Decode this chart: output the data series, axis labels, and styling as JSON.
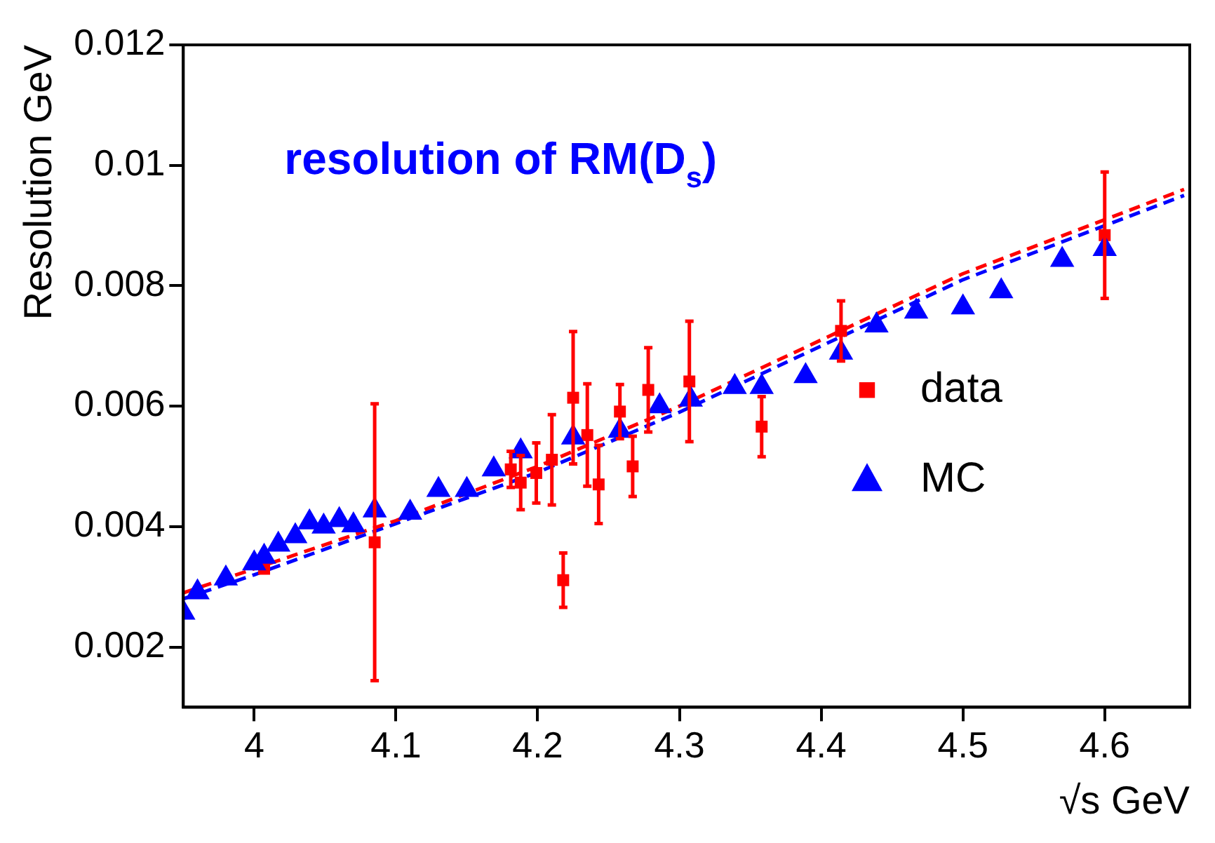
{
  "chart_data": {
    "type": "scatter",
    "title": "resolution of RM(D$_{s}$)",
    "xlabel": "√s GeV",
    "ylabel": "Resolution GeV",
    "xlim": [
      3.95,
      4.66
    ],
    "xticks": [
      4,
      4.1,
      4.2,
      4.3,
      4.4,
      4.5,
      4.6
    ],
    "ylim": [
      0.001,
      0.012
    ],
    "yticks": [
      0.002,
      0.004,
      0.006,
      0.008,
      0.01,
      0.012
    ],
    "grid": false,
    "legend": "right",
    "series": [
      {
        "type": "line",
        "color": "#ff0000",
        "marker": "none",
        "line_style": "dashed",
        "x": [
          3.95,
          4.0,
          4.1,
          4.2,
          4.3,
          4.4,
          4.5,
          4.656
        ],
        "values": [
          0.0029,
          0.0033,
          0.0041,
          0.005,
          0.006,
          0.0071,
          0.0082,
          0.0096
        ]
      },
      {
        "type": "line",
        "color": "#0000ff",
        "marker": "none",
        "line_style": "dashed",
        "x": [
          3.95,
          4.0,
          4.1,
          4.2,
          4.3,
          4.4,
          4.5,
          4.656
        ],
        "values": [
          0.0028,
          0.0032,
          0.00405,
          0.0049,
          0.0059,
          0.007,
          0.0081,
          0.0095
        ]
      },
      {
        "name": "MC",
        "color": "#0000ff",
        "marker": "triangle",
        "x": [
          3.95,
          3.96,
          3.98,
          4.0,
          4.007,
          4.017,
          4.029,
          4.039,
          4.049,
          4.06,
          4.07,
          4.085,
          4.11,
          4.13,
          4.15,
          4.169,
          4.188,
          4.225,
          4.258,
          4.286,
          4.308,
          4.339,
          4.358,
          4.389,
          4.414,
          4.439,
          4.467,
          4.5,
          4.527,
          4.57,
          4.6
        ],
        "values": [
          0.00257,
          0.00291,
          0.00314,
          0.00339,
          0.0035,
          0.0037,
          0.00384,
          0.00407,
          0.004,
          0.00411,
          0.00402,
          0.00427,
          0.00423,
          0.00461,
          0.00461,
          0.00495,
          0.00525,
          0.00548,
          0.00559,
          0.006,
          0.00611,
          0.00632,
          0.00632,
          0.0065,
          0.00689,
          0.00734,
          0.00757,
          0.00764,
          0.00791,
          0.00843,
          0.00861
        ]
      },
      {
        "name": "data",
        "color": "#ff0000",
        "marker": "square",
        "x": [
          4.007,
          4.085,
          4.181,
          4.188,
          4.199,
          4.21,
          4.218,
          4.225,
          4.235,
          4.243,
          4.258,
          4.267,
          4.278,
          4.307,
          4.358,
          4.414,
          4.6
        ],
        "values": [
          0.0033,
          0.00374,
          0.00495,
          0.00473,
          0.00489,
          0.00511,
          0.00311,
          0.00614,
          0.00552,
          0.0047,
          0.00591,
          0.005,
          0.00627,
          0.00641,
          0.00566,
          0.00725,
          0.00884
        ],
        "errors": [
          null,
          0.0023,
          0.0003,
          0.00045,
          0.0005,
          0.00075,
          0.00045,
          0.0011,
          0.00085,
          0.00065,
          0.00045,
          0.0005,
          0.0007,
          0.001,
          0.0005,
          0.0005,
          0.00105
        ]
      }
    ]
  }
}
